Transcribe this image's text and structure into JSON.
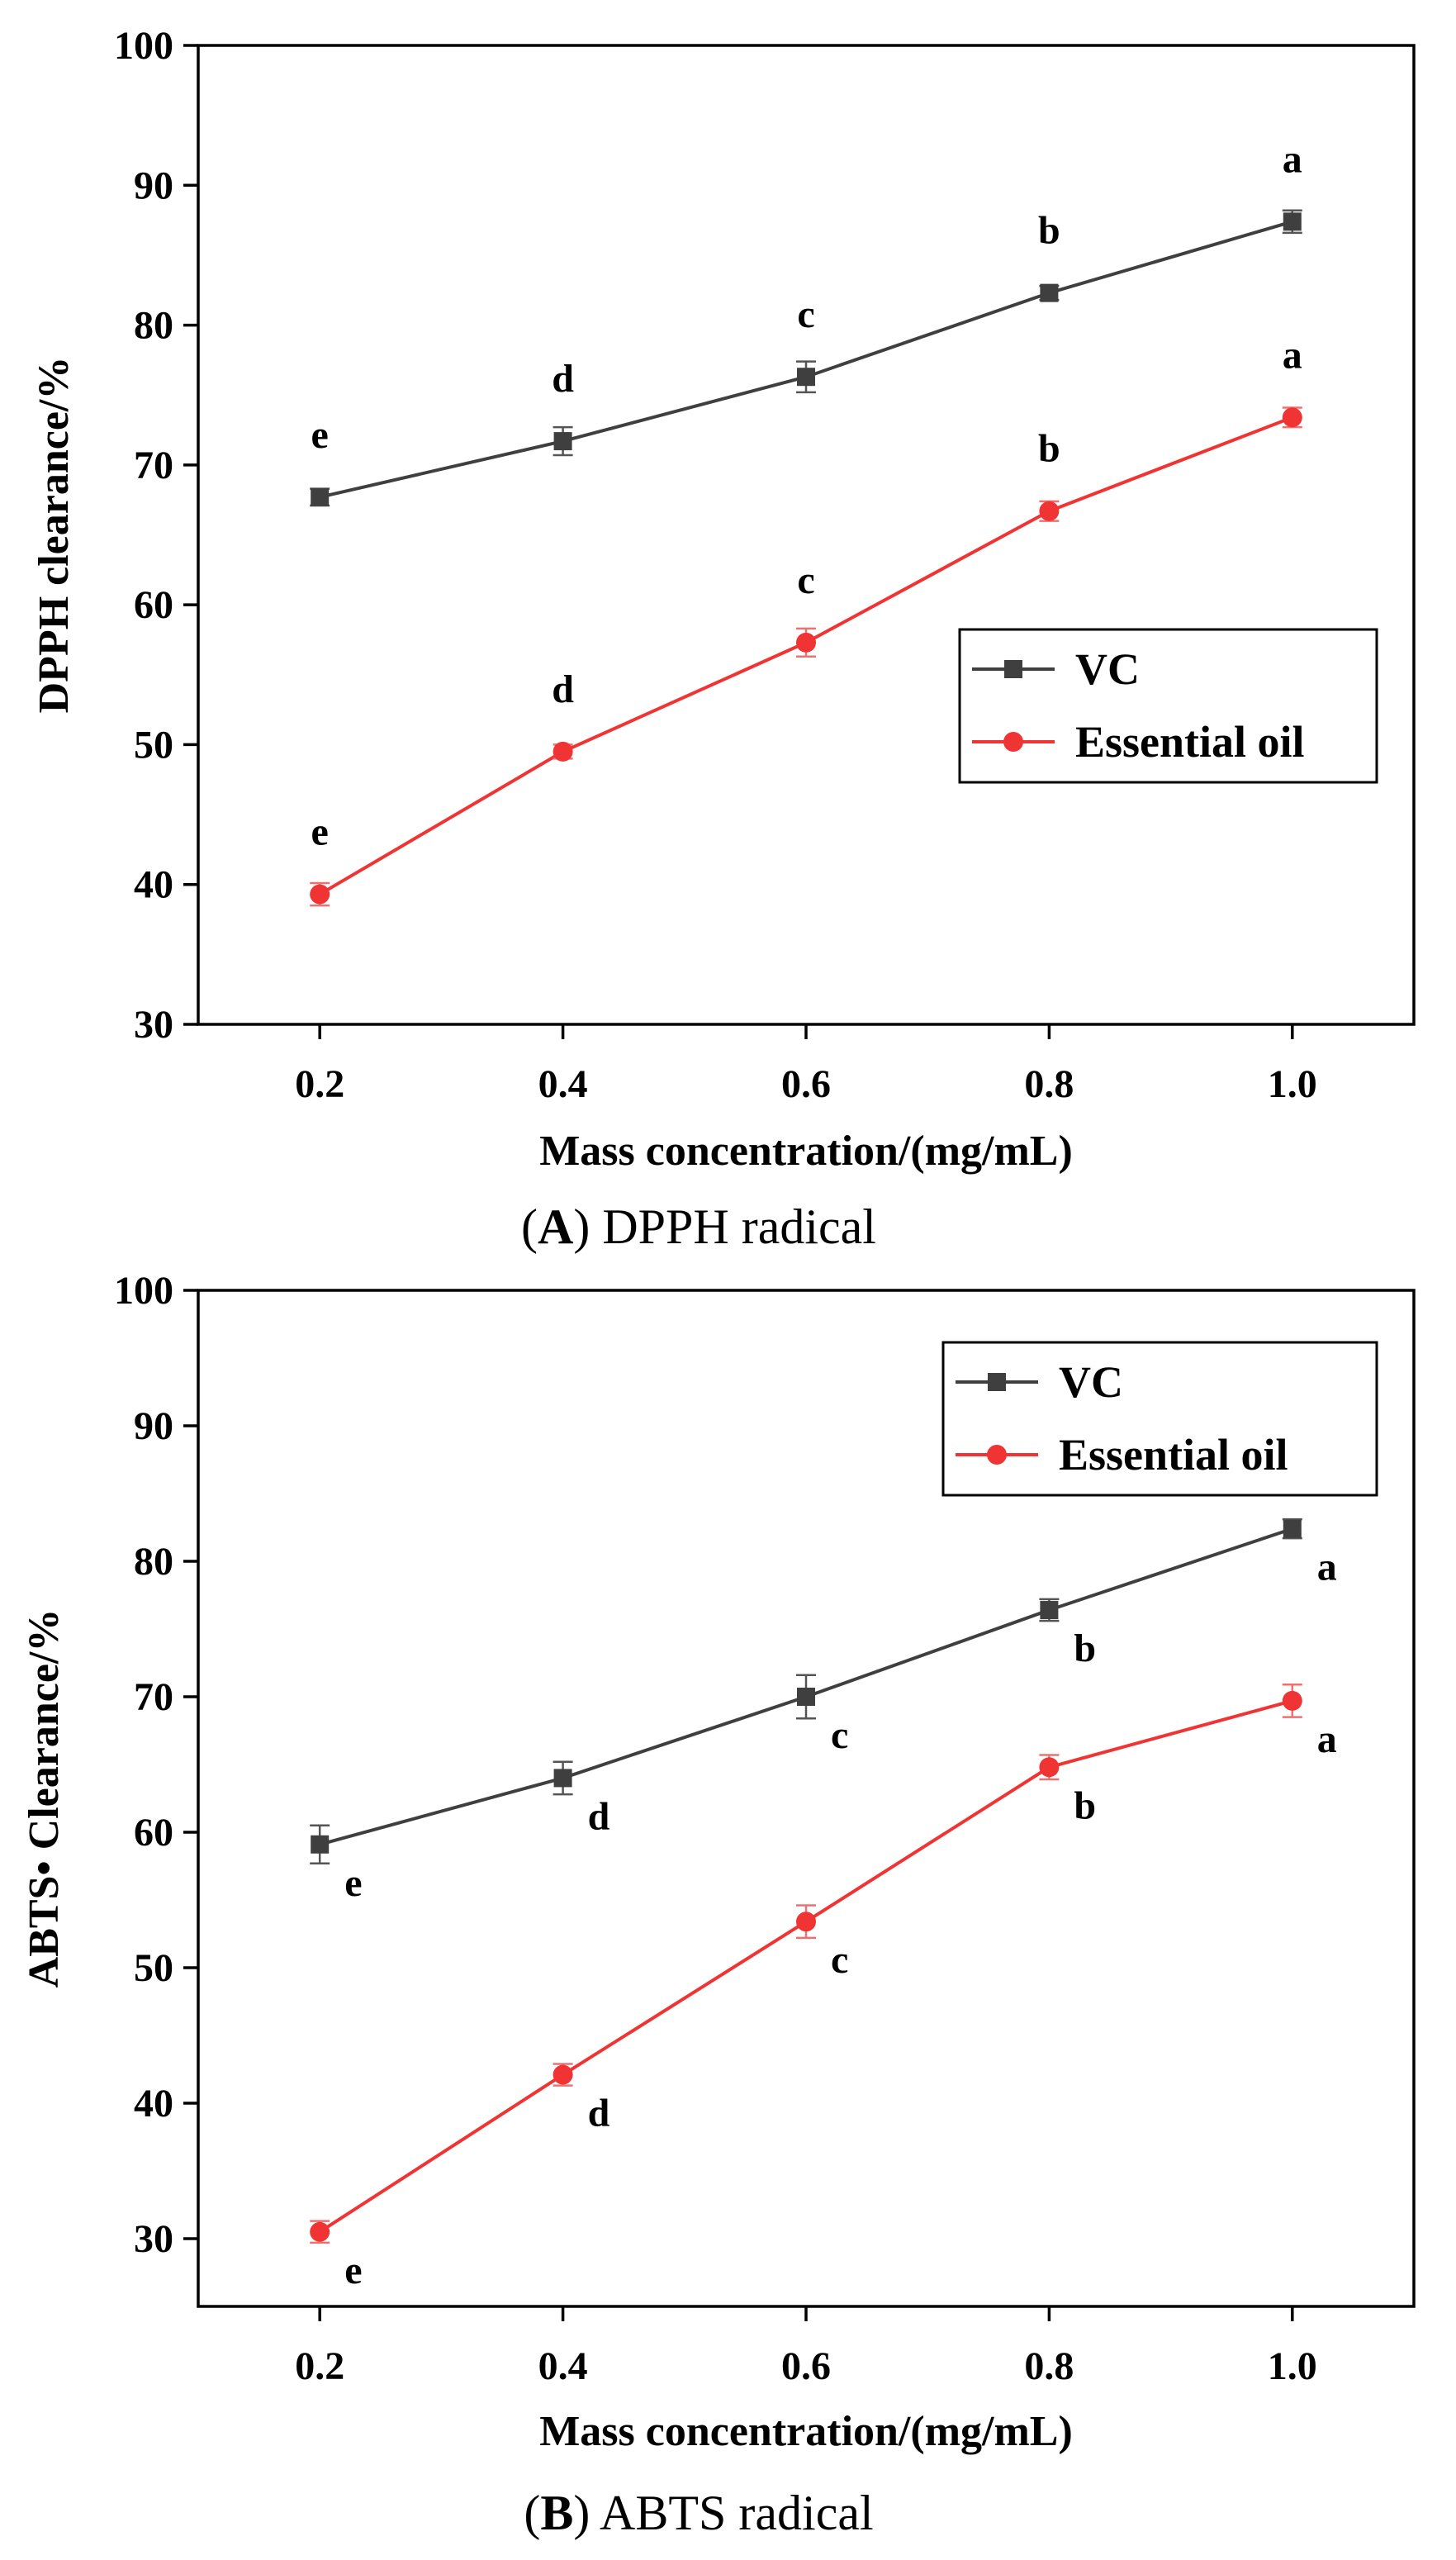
{
  "colors": {
    "vc": "#3f3f3f",
    "oil": "#f03434"
  },
  "chart_data": [
    {
      "type": "line",
      "caption_letter": "A",
      "caption_text": "DPPH radical",
      "xlabel": "Mass concentration/(mg/mL)",
      "ylabel": "DPPH clearance/%",
      "x": [
        0.2,
        0.4,
        0.6,
        0.8,
        1.0
      ],
      "xticks": [
        "0.2",
        "0.4",
        "0.6",
        "0.8",
        "1.0"
      ],
      "yticks": [
        "30",
        "40",
        "50",
        "60",
        "70",
        "80",
        "90",
        "100"
      ],
      "xlim": [
        0.1,
        1.1
      ],
      "ylim": [
        30,
        100
      ],
      "legend_position": "center-right",
      "series": [
        {
          "name": "VC",
          "marker": "square",
          "values": [
            67.7,
            71.7,
            76.3,
            82.3,
            87.4
          ],
          "errors": [
            0.6,
            1.0,
            1.1,
            0.5,
            0.8
          ],
          "labels": [
            "e",
            "d",
            "c",
            "b",
            "a"
          ],
          "label_position": "above"
        },
        {
          "name": "Essential oil",
          "marker": "circle",
          "values": [
            39.3,
            49.5,
            57.3,
            66.7,
            73.4
          ],
          "errors": [
            0.8,
            0.5,
            1.0,
            0.7,
            0.7
          ],
          "labels": [
            "e",
            "d",
            "c",
            "b",
            "a"
          ],
          "label_position": "above"
        }
      ]
    },
    {
      "type": "line",
      "caption_letter": "B",
      "caption_text": "ABTS radical",
      "xlabel": "Mass concentration/(mg/mL)",
      "ylabel": "ABTS• Clearance/%",
      "x": [
        0.2,
        0.4,
        0.6,
        0.8,
        1.0
      ],
      "xticks": [
        "0.2",
        "0.4",
        "0.6",
        "0.8",
        "1.0"
      ],
      "yticks": [
        "30",
        "40",
        "50",
        "60",
        "70",
        "80",
        "90",
        "100"
      ],
      "xlim": [
        0.1,
        1.1
      ],
      "ylim": [
        25,
        100
      ],
      "legend_position": "top-right",
      "series": [
        {
          "name": "VC",
          "marker": "square",
          "values": [
            59.1,
            64.0,
            70.0,
            76.4,
            82.4
          ],
          "errors": [
            1.4,
            1.2,
            1.6,
            0.8,
            0.7
          ],
          "labels": [
            "e",
            "d",
            "c",
            "b",
            "a"
          ],
          "label_position": "below-right"
        },
        {
          "name": "Essential oil",
          "marker": "circle",
          "values": [
            30.5,
            42.1,
            53.4,
            64.8,
            69.7
          ],
          "errors": [
            0.8,
            0.8,
            1.2,
            0.9,
            1.2
          ],
          "labels": [
            "e",
            "d",
            "c",
            "b",
            "a"
          ],
          "label_position": "below-right"
        }
      ]
    }
  ]
}
